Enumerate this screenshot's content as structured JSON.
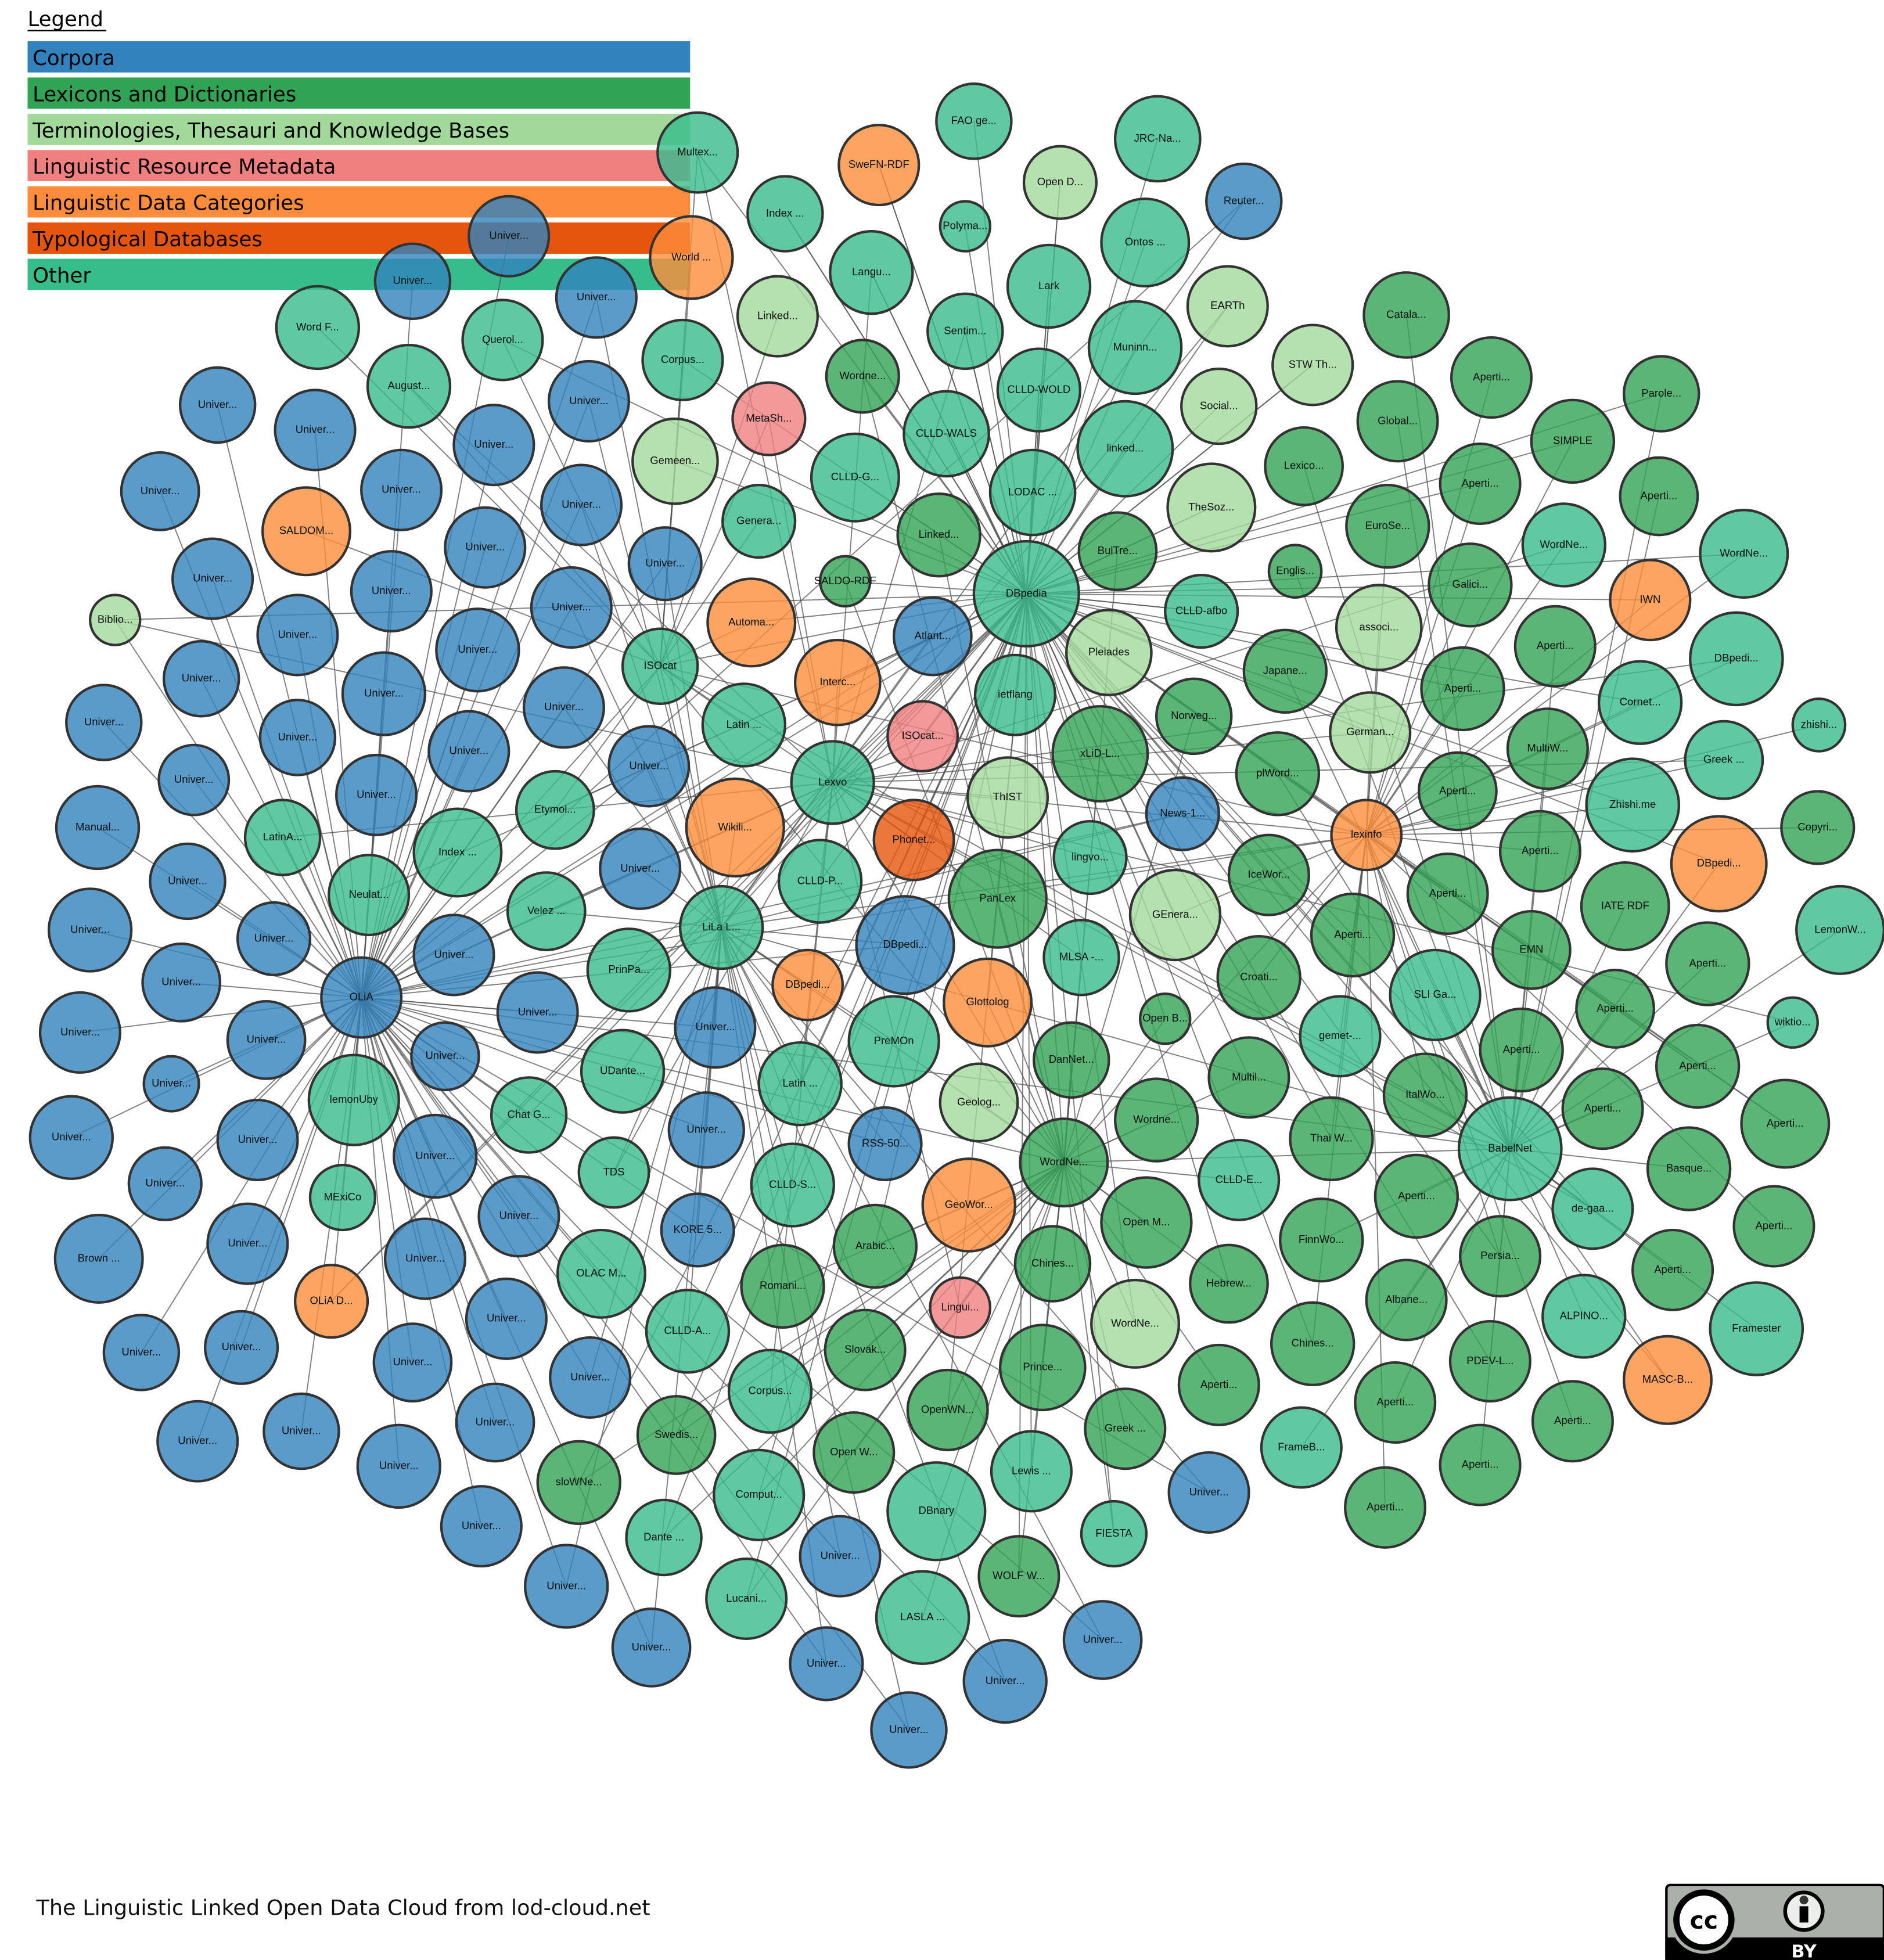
{
  "legend": {
    "title": "Legend",
    "items": [
      {
        "key": "C",
        "label": "Corpora",
        "color": "#3182bd"
      },
      {
        "key": "L",
        "label": "Lexicons and Dictionaries",
        "color": "#31a354"
      },
      {
        "key": "T",
        "label": "Terminologies, Thesauri and Knowledge Bases",
        "color": "#a1d99b"
      },
      {
        "key": "M",
        "label": "Linguistic Resource Metadata",
        "color": "#f08080"
      },
      {
        "key": "D",
        "label": "Linguistic Data Categories",
        "color": "#fd8d3c"
      },
      {
        "key": "Y",
        "label": "Typological Databases",
        "color": "#e6550d"
      },
      {
        "key": "O",
        "label": "Other",
        "color": "#37bc8c"
      }
    ]
  },
  "footer": {
    "caption": "The Linguistic Linked Open Data Cloud from lod-cloud.net",
    "license_cc": "cc",
    "license_by": "BY"
  },
  "nodes": [
    {
      "l": "Multex...",
      "c": "O"
    },
    {
      "l": "FAO ge...",
      "c": "O"
    },
    {
      "l": "SweFN-RDF",
      "c": "D"
    },
    {
      "l": "JRC-Na...",
      "c": "O"
    },
    {
      "l": "Open D...",
      "c": "T"
    },
    {
      "l": "Reuter...",
      "c": "C"
    },
    {
      "l": "Index ...",
      "c": "O"
    },
    {
      "l": "Polyma...",
      "c": "O"
    },
    {
      "l": "Univer...",
      "c": "C"
    },
    {
      "l": "World ...",
      "c": "D"
    },
    {
      "l": "Langu...",
      "c": "O"
    },
    {
      "l": "Ontos ...",
      "c": "O"
    },
    {
      "l": "Univer...",
      "c": "C"
    },
    {
      "l": "Univer...",
      "c": "C"
    },
    {
      "l": "Lark",
      "c": "O"
    },
    {
      "l": "EARTh",
      "c": "T"
    },
    {
      "l": "Catala...",
      "c": "L"
    },
    {
      "l": "Word F...",
      "c": "O"
    },
    {
      "l": "Querol...",
      "c": "O"
    },
    {
      "l": "Linked...",
      "c": "T"
    },
    {
      "l": "Sentim...",
      "c": "O"
    },
    {
      "l": "Muninn...",
      "c": "O"
    },
    {
      "l": "STW Th...",
      "c": "T"
    },
    {
      "l": "Aperti...",
      "c": "L"
    },
    {
      "l": "Parole...",
      "c": "L"
    },
    {
      "l": "August...",
      "c": "O"
    },
    {
      "l": "Corpus...",
      "c": "O"
    },
    {
      "l": "Wordne...",
      "c": "L"
    },
    {
      "l": "CLLD-WOLD",
      "c": "O"
    },
    {
      "l": "Univer...",
      "c": "C"
    },
    {
      "l": "Univer...",
      "c": "C"
    },
    {
      "l": "Social...",
      "c": "T"
    },
    {
      "l": "Global...",
      "c": "L"
    },
    {
      "l": "SIMPLE",
      "c": "L"
    },
    {
      "l": "Univer...",
      "c": "C"
    },
    {
      "l": "MetaSh...",
      "c": "M"
    },
    {
      "l": "CLLD-WALS",
      "c": "O"
    },
    {
      "l": "linked...",
      "c": "O"
    },
    {
      "l": "Gemeen...",
      "c": "T"
    },
    {
      "l": "Univer...",
      "c": "C"
    },
    {
      "l": "Univer...",
      "c": "C"
    },
    {
      "l": "CLLD-G...",
      "c": "O"
    },
    {
      "l": "Univer...",
      "c": "C"
    },
    {
      "l": "LODAC ...",
      "c": "O"
    },
    {
      "l": "Lexico...",
      "c": "L"
    },
    {
      "l": "Aperti...",
      "c": "L"
    },
    {
      "l": "Aperti...",
      "c": "L"
    },
    {
      "l": "Univer...",
      "c": "C"
    },
    {
      "l": "TheSoz...",
      "c": "T"
    },
    {
      "l": "SALDOM...",
      "c": "D"
    },
    {
      "l": "Univer...",
      "c": "C"
    },
    {
      "l": "Genera...",
      "c": "O"
    },
    {
      "l": "Linked...",
      "c": "L"
    },
    {
      "l": "EuroSe...",
      "c": "L"
    },
    {
      "l": "BulTre...",
      "c": "L"
    },
    {
      "l": "WordNe...",
      "c": "O"
    },
    {
      "l": "WordNe...",
      "c": "O"
    },
    {
      "l": "Univer...",
      "c": "C"
    },
    {
      "l": "Univer...",
      "c": "C"
    },
    {
      "l": "Univer...",
      "c": "C"
    },
    {
      "l": "SALDO-RDF",
      "c": "L"
    },
    {
      "l": "DBpedia",
      "c": "O"
    },
    {
      "l": "Englis...",
      "c": "L"
    },
    {
      "l": "Galici...",
      "c": "L"
    },
    {
      "l": "IWN",
      "c": "D"
    },
    {
      "l": "Univer...",
      "c": "C"
    },
    {
      "l": "Automa...",
      "c": "D"
    },
    {
      "l": "Atlant...",
      "c": "C"
    },
    {
      "l": "CLLD-afbo",
      "c": "O"
    },
    {
      "l": "associ...",
      "c": "T"
    },
    {
      "l": "Biblio...",
      "c": "T"
    },
    {
      "l": "Univer...",
      "c": "C"
    },
    {
      "l": "Univer...",
      "c": "C"
    },
    {
      "l": "Pleiades",
      "c": "T"
    },
    {
      "l": "Aperti...",
      "c": "L"
    },
    {
      "l": "DBpedi...",
      "c": "O"
    },
    {
      "l": "Univer...",
      "c": "C"
    },
    {
      "l": "ISOcat",
      "c": "O"
    },
    {
      "l": "Interc...",
      "c": "D"
    },
    {
      "l": "ietflang",
      "c": "O"
    },
    {
      "l": "Japane...",
      "c": "L"
    },
    {
      "l": "Aperti...",
      "c": "L"
    },
    {
      "l": "Cornet...",
      "c": "O"
    },
    {
      "l": "zhishi...",
      "c": "O"
    },
    {
      "l": "Univer...",
      "c": "C"
    },
    {
      "l": "Univer...",
      "c": "C"
    },
    {
      "l": "Univer...",
      "c": "C"
    },
    {
      "l": "Latin ...",
      "c": "O"
    },
    {
      "l": "ISOcat...",
      "c": "M"
    },
    {
      "l": "Norweg...",
      "c": "L"
    },
    {
      "l": "German...",
      "c": "T"
    },
    {
      "l": "Univer...",
      "c": "C"
    },
    {
      "l": "Univer...",
      "c": "C"
    },
    {
      "l": "xLiD-L...",
      "c": "L"
    },
    {
      "l": "MultiW...",
      "c": "L"
    },
    {
      "l": "Greek ...",
      "c": "O"
    },
    {
      "l": "Univer...",
      "c": "C"
    },
    {
      "l": "Univer...",
      "c": "C"
    },
    {
      "l": "Lexvo",
      "c": "O"
    },
    {
      "l": "Wikili...",
      "c": "D"
    },
    {
      "l": "plWord...",
      "c": "L"
    },
    {
      "l": "Aperti...",
      "c": "L"
    },
    {
      "l": "Zhishi.me",
      "c": "O"
    },
    {
      "l": "Copyri...",
      "c": "L"
    },
    {
      "l": "Manual...",
      "c": "C"
    },
    {
      "l": "LatinA...",
      "c": "O"
    },
    {
      "l": "Etymol...",
      "c": "O"
    },
    {
      "l": "Index ...",
      "c": "O"
    },
    {
      "l": "Univer...",
      "c": "C"
    },
    {
      "l": "ThIST",
      "c": "T"
    },
    {
      "l": "Phonet...",
      "c": "Y"
    },
    {
      "l": "News-1...",
      "c": "C"
    },
    {
      "l": "lexinfo",
      "c": "D"
    },
    {
      "l": "Aperti...",
      "c": "L"
    },
    {
      "l": "DBpedi...",
      "c": "D"
    },
    {
      "l": "Univer...",
      "c": "C"
    },
    {
      "l": "Neulat...",
      "c": "O"
    },
    {
      "l": "Univer...",
      "c": "C"
    },
    {
      "l": "CLLD-P...",
      "c": "O"
    },
    {
      "l": "lingvo...",
      "c": "O"
    },
    {
      "l": "IceWor...",
      "c": "L"
    },
    {
      "l": "Aperti...",
      "c": "L"
    },
    {
      "l": "IATE RDF",
      "c": "L"
    },
    {
      "l": "LemonW...",
      "c": "O"
    },
    {
      "l": "Univer...",
      "c": "C"
    },
    {
      "l": "Velez ...",
      "c": "O"
    },
    {
      "l": "LiLa L...",
      "c": "O"
    },
    {
      "l": "PanLex",
      "c": "L"
    },
    {
      "l": "GEnera...",
      "c": "T"
    },
    {
      "l": "Aperti...",
      "c": "L"
    },
    {
      "l": "EMN",
      "c": "L"
    },
    {
      "l": "Univer...",
      "c": "C"
    },
    {
      "l": "PrinPa...",
      "c": "O"
    },
    {
      "l": "DBpedi...",
      "c": "C"
    },
    {
      "l": "Univer...",
      "c": "C"
    },
    {
      "l": "MLSA -...",
      "c": "O"
    },
    {
      "l": "Aperti...",
      "c": "L"
    },
    {
      "l": "Univer...",
      "c": "C"
    },
    {
      "l": "OLiA",
      "c": "C"
    },
    {
      "l": "Croati...",
      "c": "L"
    },
    {
      "l": "Univer...",
      "c": "C"
    },
    {
      "l": "DBpedi...",
      "c": "D"
    },
    {
      "l": "Glottolog",
      "c": "D"
    },
    {
      "l": "SLI Ga...",
      "c": "O"
    },
    {
      "l": "Aperti...",
      "c": "L"
    },
    {
      "l": "wiktio...",
      "c": "O"
    },
    {
      "l": "Univer...",
      "c": "C"
    },
    {
      "l": "Univer...",
      "c": "C"
    },
    {
      "l": "Univer...",
      "c": "C"
    },
    {
      "l": "PreMOn",
      "c": "O"
    },
    {
      "l": "Open B...",
      "c": "L"
    },
    {
      "l": "gemet-...",
      "c": "O"
    },
    {
      "l": "Aperti...",
      "c": "L"
    },
    {
      "l": "Aperti...",
      "c": "L"
    },
    {
      "l": "Univer...",
      "c": "C"
    },
    {
      "l": "DanNet...",
      "c": "L"
    },
    {
      "l": "Univer...",
      "c": "C"
    },
    {
      "l": "lemonUby",
      "c": "O"
    },
    {
      "l": "Chat G...",
      "c": "O"
    },
    {
      "l": "UDante...",
      "c": "O"
    },
    {
      "l": "Latin ...",
      "c": "O"
    },
    {
      "l": "Geolog...",
      "c": "T"
    },
    {
      "l": "Multil...",
      "c": "L"
    },
    {
      "l": "ItalWo...",
      "c": "L"
    },
    {
      "l": "Aperti...",
      "c": "L"
    },
    {
      "l": "Aperti...",
      "c": "L"
    },
    {
      "l": "Univer...",
      "c": "C"
    },
    {
      "l": "Univer...",
      "c": "C"
    },
    {
      "l": "Univer...",
      "c": "C"
    },
    {
      "l": "WordNe...",
      "c": "L"
    },
    {
      "l": "Wordne...",
      "c": "L"
    },
    {
      "l": "Thai W...",
      "c": "L"
    },
    {
      "l": "BabelNet",
      "c": "O"
    },
    {
      "l": "Univer...",
      "c": "C"
    },
    {
      "l": "RSS-50...",
      "c": "C"
    },
    {
      "l": "TDS",
      "c": "O"
    },
    {
      "l": "CLLD-S...",
      "c": "O"
    },
    {
      "l": "CLLD-E...",
      "c": "O"
    },
    {
      "l": "Basque...",
      "c": "L"
    },
    {
      "l": "Univer...",
      "c": "C"
    },
    {
      "l": "de-gaa...",
      "c": "O"
    },
    {
      "l": "MExiCo",
      "c": "O"
    },
    {
      "l": "Univer...",
      "c": "C"
    },
    {
      "l": "GeoWor...",
      "c": "D"
    },
    {
      "l": "Aperti...",
      "c": "L"
    },
    {
      "l": "Aperti...",
      "c": "L"
    },
    {
      "l": "KORE 5...",
      "c": "C"
    },
    {
      "l": "Open M...",
      "c": "L"
    },
    {
      "l": "Univer...",
      "c": "C"
    },
    {
      "l": "Arabic...",
      "c": "L"
    },
    {
      "l": "FinnWo...",
      "c": "L"
    },
    {
      "l": "Brown ...",
      "c": "C"
    },
    {
      "l": "Univer...",
      "c": "C"
    },
    {
      "l": "OLAC M...",
      "c": "O"
    },
    {
      "l": "Chines...",
      "c": "L"
    },
    {
      "l": "Persia...",
      "c": "L"
    },
    {
      "l": "Aperti...",
      "c": "L"
    },
    {
      "l": "Framester",
      "c": "O"
    },
    {
      "l": "Hebrew...",
      "c": "L"
    },
    {
      "l": "Romani...",
      "c": "L"
    },
    {
      "l": "OLiA D...",
      "c": "D"
    },
    {
      "l": "Univer...",
      "c": "C"
    },
    {
      "l": "Albane...",
      "c": "L"
    },
    {
      "l": "ALPINO...",
      "c": "O"
    },
    {
      "l": "CLLD-A...",
      "c": "O"
    },
    {
      "l": "Lingui...",
      "c": "M"
    },
    {
      "l": "WordNe...",
      "c": "T"
    },
    {
      "l": "Chines...",
      "c": "L"
    },
    {
      "l": "MASC-B...",
      "c": "D"
    },
    {
      "l": "Univer...",
      "c": "C"
    },
    {
      "l": "Univer...",
      "c": "C"
    },
    {
      "l": "Slovak...",
      "c": "L"
    },
    {
      "l": "Prince...",
      "c": "L"
    },
    {
      "l": "Univer...",
      "c": "C"
    },
    {
      "l": "Univer...",
      "c": "C"
    },
    {
      "l": "Corpus...",
      "c": "O"
    },
    {
      "l": "PDEV-L...",
      "c": "L"
    },
    {
      "l": "Aperti...",
      "c": "L"
    },
    {
      "l": "Aperti...",
      "c": "L"
    },
    {
      "l": "OpenWN...",
      "c": "L"
    },
    {
      "l": "Greek ...",
      "c": "L"
    },
    {
      "l": "Aperti...",
      "c": "L"
    },
    {
      "l": "Univer...",
      "c": "C"
    },
    {
      "l": "Univer...",
      "c": "C"
    },
    {
      "l": "Univer...",
      "c": "C"
    },
    {
      "l": "Swedis...",
      "c": "L"
    },
    {
      "l": "Lewis ...",
      "c": "O"
    },
    {
      "l": "FrameB...",
      "c": "O"
    },
    {
      "l": "Univer...",
      "c": "C"
    },
    {
      "l": "Open W...",
      "c": "L"
    },
    {
      "l": "Aperti...",
      "c": "L"
    },
    {
      "l": "sloWNe...",
      "c": "L"
    },
    {
      "l": "Comput...",
      "c": "O"
    },
    {
      "l": "DBnary",
      "c": "O"
    },
    {
      "l": "Univer...",
      "c": "C"
    },
    {
      "l": "Aperti...",
      "c": "L"
    },
    {
      "l": "FIESTA",
      "c": "O"
    },
    {
      "l": "Univer...",
      "c": "C"
    },
    {
      "l": "Dante ...",
      "c": "O"
    },
    {
      "l": "Univer...",
      "c": "C"
    },
    {
      "l": "WOLF W...",
      "c": "L"
    },
    {
      "l": "Univer...",
      "c": "C"
    },
    {
      "l": "Lucani...",
      "c": "O"
    },
    {
      "l": "LASLA ...",
      "c": "O"
    },
    {
      "l": "Univer...",
      "c": "C"
    },
    {
      "l": "Univer...",
      "c": "C"
    },
    {
      "l": "Univer...",
      "c": "C"
    },
    {
      "l": "Univer...",
      "c": "C"
    },
    {
      "l": "Univer...",
      "c": "C"
    }
  ]
}
